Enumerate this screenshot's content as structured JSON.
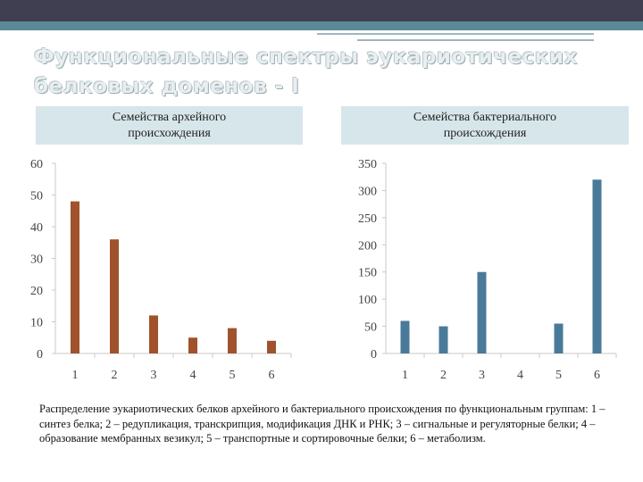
{
  "slide": {
    "title_line1": "Функциональные спектры эукариотических",
    "title_line2": "белковых доменов - I",
    "caption": "Распределение эукариотических белков архейного и бактериального происхождения по функциональным группам: 1 – синтез белка; 2 – редупликация, транскрипция, модификация ДНК и РНК; 3 – сигнальные и регуляторные белки; 4 – образование мембранных везикул; 5 – транспортные и сортировочные белки; 6 – метаболизм."
  },
  "headers": {
    "left_line1": "Семейства архейного",
    "left_line2": "происхождения",
    "right_line1": "Семейства бактериального",
    "right_line2": "происхождения"
  },
  "chart_data": [
    {
      "type": "bar",
      "categories": [
        "1",
        "2",
        "3",
        "4",
        "5",
        "6"
      ],
      "values": [
        48,
        36,
        12,
        5,
        8,
        4
      ],
      "ylim": [
        0,
        60
      ],
      "yticks": [
        "0",
        "10",
        "20",
        "30",
        "40",
        "50",
        "60"
      ],
      "color": "#a0522d",
      "grid": false
    },
    {
      "type": "bar",
      "categories": [
        "1",
        "2",
        "3",
        "4",
        "5",
        "6"
      ],
      "values": [
        60,
        50,
        150,
        0,
        55,
        320
      ],
      "ylim": [
        0,
        350
      ],
      "yticks": [
        "0",
        "50",
        "100",
        "150",
        "200",
        "250",
        "300",
        "350"
      ],
      "color": "#4a7a99",
      "grid": false
    }
  ]
}
